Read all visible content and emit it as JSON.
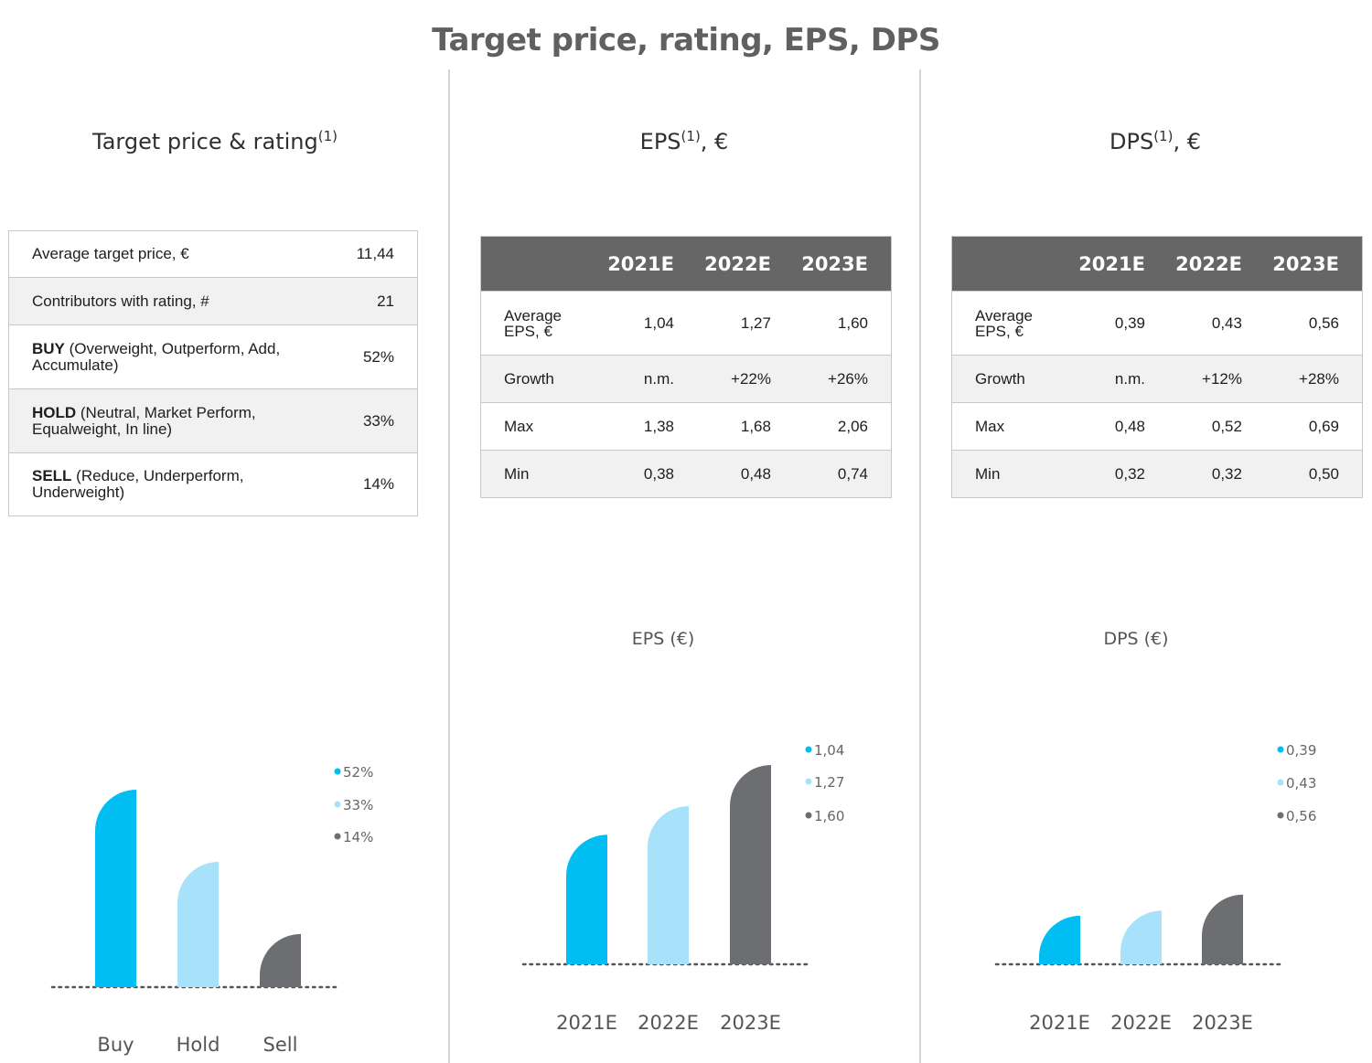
{
  "title": "Target price, rating, EPS, DPS",
  "rating_panel": {
    "title": "Target price & rating",
    "sup": "(1)",
    "rows": [
      {
        "bold": "",
        "label": "Average target price, €",
        "value": "11,44"
      },
      {
        "bold": "",
        "label": "Contributors with rating, #",
        "value": "21"
      },
      {
        "bold": "BUY",
        "label": " (Overweight, Outperform, Add, Accumulate)",
        "value": "52%"
      },
      {
        "bold": "HOLD",
        "label": " (Neutral, Market Perform, Equalweight, In line)",
        "value": "33%"
      },
      {
        "bold": "SELL",
        "label": " (Reduce, Underperform, Underweight)",
        "value": "14%"
      }
    ]
  },
  "eps_panel": {
    "title": "EPS",
    "sup": "(1)",
    "title_suffix": ", €",
    "headers": [
      "2021E",
      "2022E",
      "2023E"
    ],
    "rows": [
      {
        "label": "Average EPS, €",
        "values": [
          "1,04",
          "1,27",
          "1,60"
        ]
      },
      {
        "label": "Growth",
        "values": [
          "n.m.",
          "+22%",
          "+26%"
        ]
      },
      {
        "label": "Max",
        "values": [
          "1,38",
          "1,68",
          "2,06"
        ]
      },
      {
        "label": "Min",
        "values": [
          "0,38",
          "0,48",
          "0,74"
        ]
      }
    ]
  },
  "dps_panel": {
    "title": "DPS",
    "sup": "(1)",
    "title_suffix": ", €",
    "headers": [
      "2021E",
      "2022E",
      "2023E"
    ],
    "rows": [
      {
        "label": "Average EPS, €",
        "values": [
          "0,39",
          "0,43",
          "0,56"
        ]
      },
      {
        "label": "Growth",
        "values": [
          "n.m.",
          "+12%",
          "+28%"
        ]
      },
      {
        "label": "Max",
        "values": [
          "0,48",
          "0,52",
          "0,69"
        ]
      },
      {
        "label": "Min",
        "values": [
          "0,32",
          "0,32",
          "0,50"
        ]
      }
    ]
  },
  "colors": {
    "bar1": "#00bdf2",
    "bar2": "#a8e1fa",
    "bar3": "#6d6e71",
    "header": "#666666"
  },
  "chart_data": [
    {
      "type": "bar",
      "title": "",
      "categories": [
        "Buy",
        "Hold",
        "Sell"
      ],
      "values": [
        52,
        33,
        14
      ],
      "labels": [
        "52%",
        "33%",
        "14%"
      ],
      "ylim": [
        0,
        52
      ],
      "legend": "top-right"
    },
    {
      "type": "bar",
      "title": "EPS (€)",
      "categories": [
        "2021E",
        "2022E",
        "2023E"
      ],
      "values": [
        1.04,
        1.27,
        1.6
      ],
      "labels": [
        "1,04",
        "1,27",
        "1,60"
      ],
      "ylim": [
        0,
        1.6
      ],
      "legend": "top-right"
    },
    {
      "type": "bar",
      "title": "DPS (€)",
      "categories": [
        "2021E",
        "2022E",
        "2023E"
      ],
      "values": [
        0.39,
        0.43,
        0.56
      ],
      "labels": [
        "0,39",
        "0,43",
        "0,56"
      ],
      "ylim": [
        0,
        1.6
      ],
      "legend": "top-right"
    }
  ]
}
